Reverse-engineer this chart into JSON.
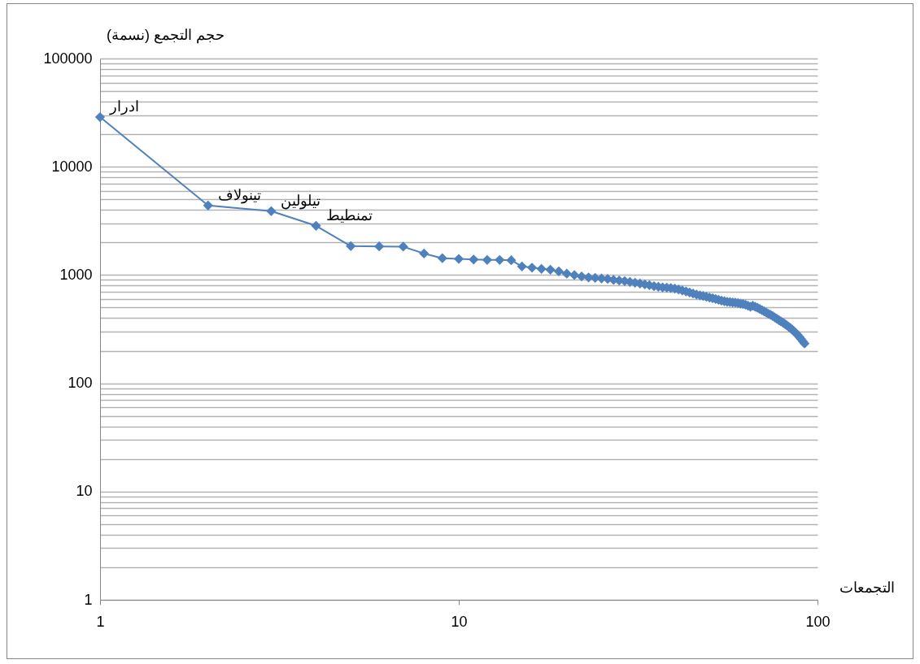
{
  "chart_data": {
    "type": "line",
    "xlabel": "التجمعات",
    "ylabel": "حجم التجمع (نسمة)",
    "x": [
      1,
      2,
      3,
      4,
      5,
      6,
      7,
      8,
      9,
      10,
      11,
      12,
      13,
      14,
      15,
      16,
      17,
      18,
      19,
      20,
      21,
      22,
      23,
      24,
      25,
      26,
      27,
      28,
      29,
      30,
      31,
      32,
      33,
      34,
      35,
      36,
      37,
      38,
      39,
      40,
      41,
      42,
      43,
      44,
      45,
      46,
      47,
      48,
      49,
      50,
      51,
      52,
      53,
      54,
      55,
      56,
      57,
      58,
      59,
      60,
      61,
      62,
      63,
      64,
      65,
      66,
      67,
      68,
      69,
      70,
      71,
      72,
      73,
      74,
      75,
      76,
      77,
      78,
      79,
      80,
      81,
      82,
      83,
      84,
      85,
      86,
      87,
      88,
      89,
      90,
      91,
      92
    ],
    "series": [
      {
        "color": "#4f81bd",
        "values": [
          28800,
          4390,
          3890,
          2850,
          1850,
          1840,
          1830,
          1580,
          1430,
          1410,
          1390,
          1380,
          1380,
          1370,
          1200,
          1170,
          1140,
          1120,
          1080,
          1030,
          1000,
          970,
          950,
          940,
          930,
          920,
          900,
          890,
          880,
          865,
          850,
          835,
          820,
          805,
          790,
          780,
          770,
          765,
          758,
          750,
          735,
          720,
          705,
          690,
          675,
          660,
          650,
          640,
          630,
          620,
          610,
          600,
          590,
          580,
          572,
          566,
          562,
          558,
          555,
          550,
          545,
          540,
          532,
          522,
          510,
          520,
          510,
          498,
          486,
          474,
          462,
          450,
          439,
          428,
          417,
          406,
          395,
          384,
          374,
          364,
          354,
          344,
          334,
          324,
          313,
          302,
          291,
          280,
          268,
          256,
          244,
          233
        ]
      }
    ],
    "annotations": [
      {
        "text": "ادرار",
        "x": 1,
        "y": 28800
      },
      {
        "text": "تينولاف",
        "x": 2,
        "y": 4390
      },
      {
        "text": "تيلولين",
        "x": 3,
        "y": 3890
      },
      {
        "text": "تمنطيط",
        "x": 4,
        "y": 2850
      }
    ],
    "log": "xy",
    "xlim": [
      1,
      100
    ],
    "xticks": [
      1,
      10,
      100
    ],
    "ylim": [
      1,
      100000
    ],
    "yticks": [
      1,
      {
        "value": 2,
        "label": null
      },
      {
        "value": 3,
        "label": null
      },
      {
        "value": 4,
        "label": null
      },
      {
        "value": 5,
        "label": null
      },
      {
        "value": 6,
        "label": null
      },
      {
        "value": 7,
        "label": null
      },
      {
        "value": 8,
        "label": null
      },
      {
        "value": 9,
        "label": null
      },
      10,
      {
        "value": 20,
        "label": null
      },
      {
        "value": 30,
        "label": null
      },
      {
        "value": 40,
        "label": null
      },
      {
        "value": 50,
        "label": null
      },
      {
        "value": 60,
        "label": null
      },
      {
        "value": 70,
        "label": null
      },
      {
        "value": 80,
        "label": null
      },
      {
        "value": 90,
        "label": null
      },
      100,
      {
        "value": 200,
        "label": null
      },
      {
        "value": 300,
        "label": null
      },
      {
        "value": 400,
        "label": null
      },
      {
        "value": 500,
        "label": null
      },
      {
        "value": 600,
        "label": null
      },
      {
        "value": 700,
        "label": null
      },
      {
        "value": 800,
        "label": null
      },
      {
        "value": 900,
        "label": null
      },
      1000,
      {
        "value": 2000,
        "label": null
      },
      {
        "value": 3000,
        "label": null
      },
      {
        "value": 4000,
        "label": null
      },
      {
        "value": 5000,
        "label": null
      },
      {
        "value": 6000,
        "label": null
      },
      {
        "value": 7000,
        "label": null
      },
      {
        "value": 8000,
        "label": null
      },
      {
        "value": 9000,
        "label": null
      },
      10000,
      {
        "value": 20000,
        "label": null
      },
      {
        "value": 30000,
        "label": null
      },
      {
        "value": 40000,
        "label": null
      },
      {
        "value": 50000,
        "label": null
      },
      {
        "value": 60000,
        "label": null
      },
      {
        "value": 70000,
        "label": null
      },
      {
        "value": 80000,
        "label": null
      },
      {
        "value": 90000,
        "label": null
      },
      100000
    ],
    "grid": "y",
    "marker": "diamond",
    "line_style": "solid"
  }
}
